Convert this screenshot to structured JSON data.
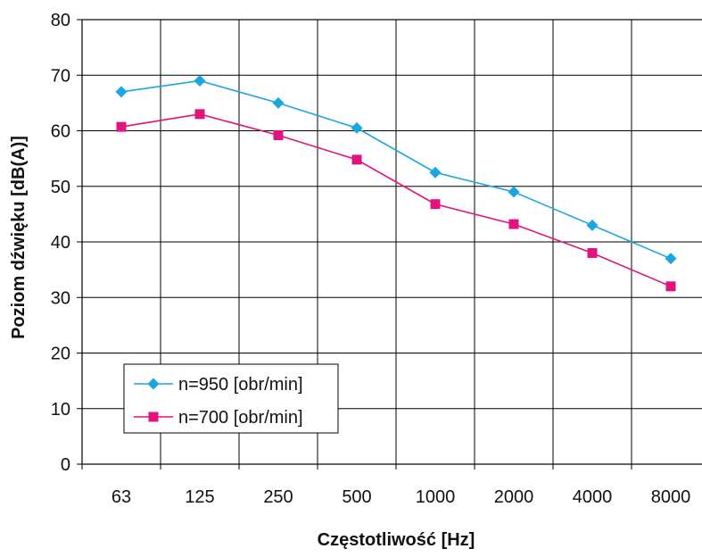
{
  "chart_data": {
    "type": "line",
    "title": "",
    "xlabel": "Częstotliwość [Hz]",
    "ylabel": "Poziom dźwięku [dB(A)]",
    "categories": [
      "63",
      "125",
      "250",
      "500",
      "1000",
      "2000",
      "4000",
      "8000"
    ],
    "ylim": [
      0,
      80
    ],
    "yticks": [
      0,
      10,
      20,
      30,
      40,
      50,
      60,
      70,
      80
    ],
    "grid": true,
    "legend_position": "bottom-left",
    "series": [
      {
        "name": "n=950 [obr/min]",
        "color": "#1aa6e0",
        "marker": "diamond",
        "values": [
          67,
          69,
          65,
          60.5,
          52.5,
          49,
          43,
          37
        ]
      },
      {
        "name": "n=700 [obr/min]",
        "color": "#e0137f",
        "marker": "square",
        "values": [
          60.7,
          63,
          59.2,
          54.8,
          46.8,
          43.2,
          38,
          32
        ]
      }
    ]
  }
}
